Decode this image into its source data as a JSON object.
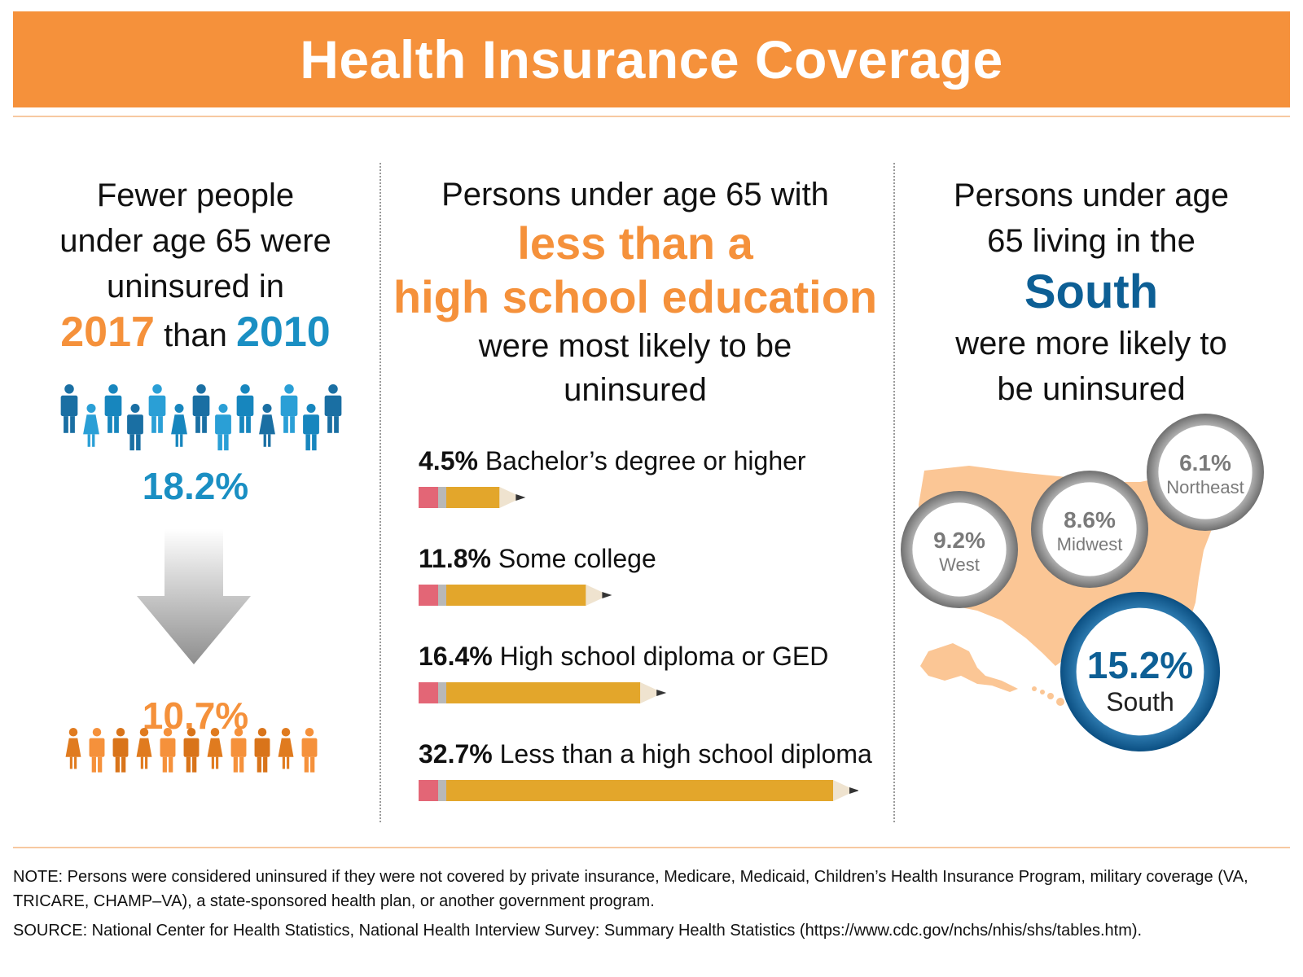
{
  "title": "Health Insurance Coverage",
  "colors": {
    "orange": "#f5913b",
    "blue": "#1a8fc3",
    "dark_blue": "#0d5f95",
    "gray": "#8c8c8c",
    "pencil": "#e3a62b",
    "map": "#fbc695"
  },
  "panel1": {
    "line1": "Fewer people",
    "line2": "under age 65 were",
    "line3": "uninsured in",
    "year_a": "2017",
    "connector": "than",
    "year_b": "2010",
    "icons_2010": "people-icon-blue",
    "icons_2017": "people-icon-orange",
    "arrow_icon": "down-arrow-icon"
  },
  "panel2": {
    "line1": "Persons under age 65 with",
    "accent1": "less than a",
    "accent2": "high school education",
    "line2": "were most likely to be",
    "line3": "uninsured"
  },
  "panel3": {
    "line1": "Persons under age",
    "line2": "65 living in the",
    "accent": "South",
    "line3": "were more likely to",
    "line4": "be uninsured",
    "map_icon": "us-map-icon"
  },
  "chart_data": [
    {
      "type": "bar",
      "title": "Fewer people under age 65 were uninsured in 2017 than 2010",
      "categories": [
        "2010",
        "2017"
      ],
      "values": [
        18.2,
        10.7
      ],
      "labels": [
        "18.2%",
        "10.7%"
      ],
      "unit": "percent uninsured"
    },
    {
      "type": "bar",
      "orientation": "horizontal",
      "title": "Persons under age 65 with less than a high school education were most likely to be uninsured",
      "categories": [
        "Bachelor’s degree or higher",
        "Some college",
        "High school diploma or GED",
        "Less than a high school diploma"
      ],
      "values": [
        4.5,
        11.8,
        16.4,
        32.7
      ],
      "labels": [
        "4.5%",
        "11.8%",
        "16.4%",
        "32.7%"
      ],
      "xlim": [
        0,
        32.7
      ],
      "unit": "percent uninsured"
    },
    {
      "type": "bubble-map",
      "title": "Persons under age 65 living in the South were more likely to be uninsured",
      "categories": [
        "West",
        "Midwest",
        "Northeast",
        "South"
      ],
      "values": [
        9.2,
        8.6,
        6.1,
        15.2
      ],
      "labels": [
        "9.2%",
        "8.6%",
        "6.1%",
        "15.2%"
      ],
      "highlight": "South"
    }
  ],
  "note": "NOTE: Persons were considered uninsured if they were not covered by private insurance, Medicare, Medicaid, Children’s Health Insurance Program, military coverage (VA, TRICARE, CHAMP–VA), a state-sponsored health plan, or another government program.",
  "source": "SOURCE: National Center for Health Statistics, National Health Interview Survey: Summary Health Statistics (https://www.cdc.gov/nchs/nhis/shs/tables.htm)."
}
